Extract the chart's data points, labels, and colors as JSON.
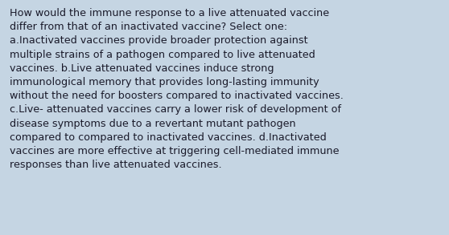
{
  "background_color": "#c5d5e3",
  "text_color": "#1a1a2a",
  "font_size": 9.2,
  "font_family": "DejaVu Sans",
  "lines": [
    "How would the immune response to a live attenuated vaccine",
    "differ from that of an inactivated vaccine? Select one:",
    "a.Inactivated vaccines provide broader protection against",
    "multiple strains of a pathogen compared to live attenuated",
    "vaccines. b.Live attenuated vaccines induce strong",
    "immunological memory that provides long-lasting immunity",
    "without the need for boosters compared to inactivated vaccines.",
    "c.Live- attenuated vaccines carry a lower risk of development of",
    "disease symptoms due to a revertant mutant pathogen",
    "compared to compared to inactivated vaccines. d.Inactivated",
    "vaccines are more effective at triggering cell-mediated immune",
    "responses than live attenuated vaccines."
  ],
  "fig_width": 5.58,
  "fig_height": 2.93,
  "dpi": 100
}
